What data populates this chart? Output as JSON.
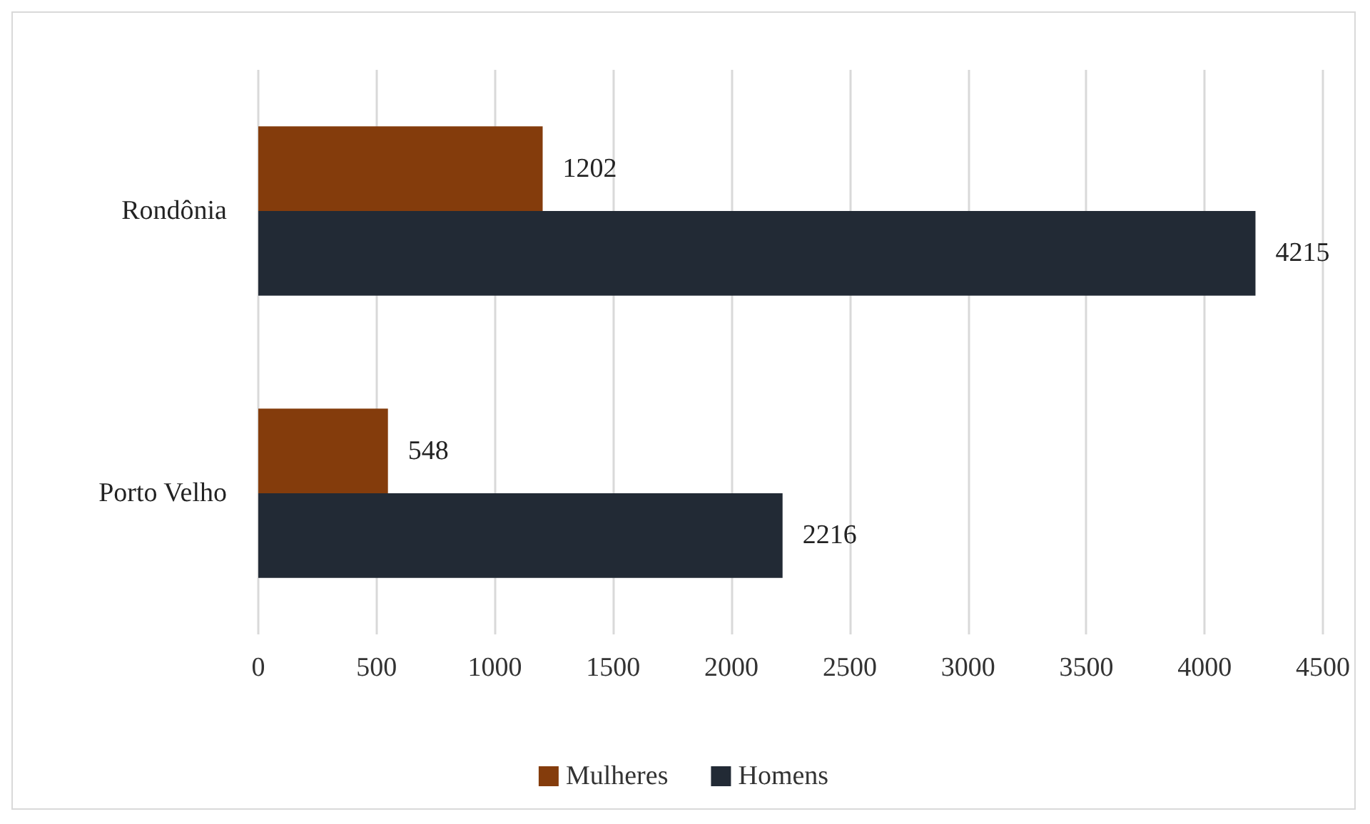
{
  "chart_data": {
    "type": "bar",
    "orientation": "horizontal",
    "categories": [
      "Rondônia",
      "Porto Velho"
    ],
    "series": [
      {
        "name": "Mulheres",
        "color": "#843c0c",
        "values": [
          1202,
          548
        ]
      },
      {
        "name": "Homens",
        "color": "#222a35",
        "values": [
          4215,
          2216
        ]
      }
    ],
    "xlim": [
      0,
      4500
    ],
    "xticks": [
      0,
      500,
      1000,
      1500,
      2000,
      2500,
      3000,
      3500,
      4000,
      4500
    ],
    "grid": "x",
    "legend": "bottom",
    "data_labels": true
  }
}
